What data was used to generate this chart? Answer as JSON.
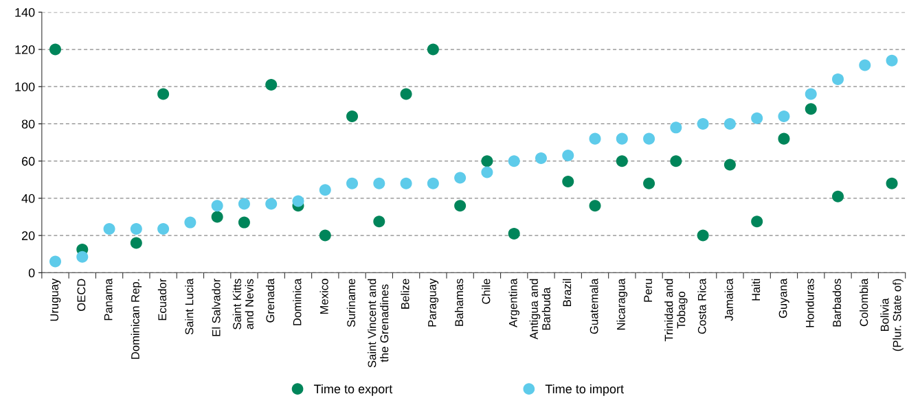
{
  "chart_data": {
    "type": "scatter",
    "categories": [
      "Uruguay",
      "OECD",
      "Panama",
      "Dominican Rep.",
      "Ecuador",
      "Saint Lucia",
      "El Salvador",
      "Saint Kitts\nand Nevis",
      "Grenada",
      "Dominica",
      "Mexico",
      "Suriname",
      "Saint Vincent and\nthe Grenadines",
      "Belize",
      "Paraguay",
      "Bahamas",
      "Chile",
      "Argentina",
      "Antigua and\nBarbuda",
      "Brazil",
      "Guatemala",
      "Nicaragua",
      "Peru",
      "Trinidad and\nTobago",
      "Costa Rica",
      "Jamaica",
      "Haiti",
      "Guyana",
      "Honduras",
      "Barbados",
      "Colombia",
      "Bolivia\n(Plur. State of)"
    ],
    "series": [
      {
        "name": "Time to export",
        "color": "#00855a",
        "values": [
          120,
          12.5,
          null,
          16,
          96,
          null,
          30,
          27,
          101,
          36,
          20,
          84,
          27.5,
          96,
          120,
          36,
          60,
          21,
          null,
          49,
          36,
          60,
          48,
          60,
          20,
          58,
          27.5,
          72,
          88,
          41,
          null,
          48
        ]
      },
      {
        "name": "Time to import",
        "color": "#5ecbea",
        "values": [
          6,
          8.5,
          23.5,
          23.5,
          23.5,
          27,
          36,
          37,
          37,
          38.5,
          44.5,
          48,
          48,
          48,
          48,
          51,
          54,
          60,
          61.5,
          63,
          72,
          72,
          72,
          78,
          80,
          80,
          83,
          84,
          96,
          104,
          111.5,
          114
        ]
      }
    ],
    "ylim": [
      0,
      140
    ],
    "yticks": [
      0,
      20,
      40,
      60,
      80,
      100,
      120,
      140
    ],
    "grid": "y",
    "legend": "bottom",
    "marker": "circle"
  }
}
